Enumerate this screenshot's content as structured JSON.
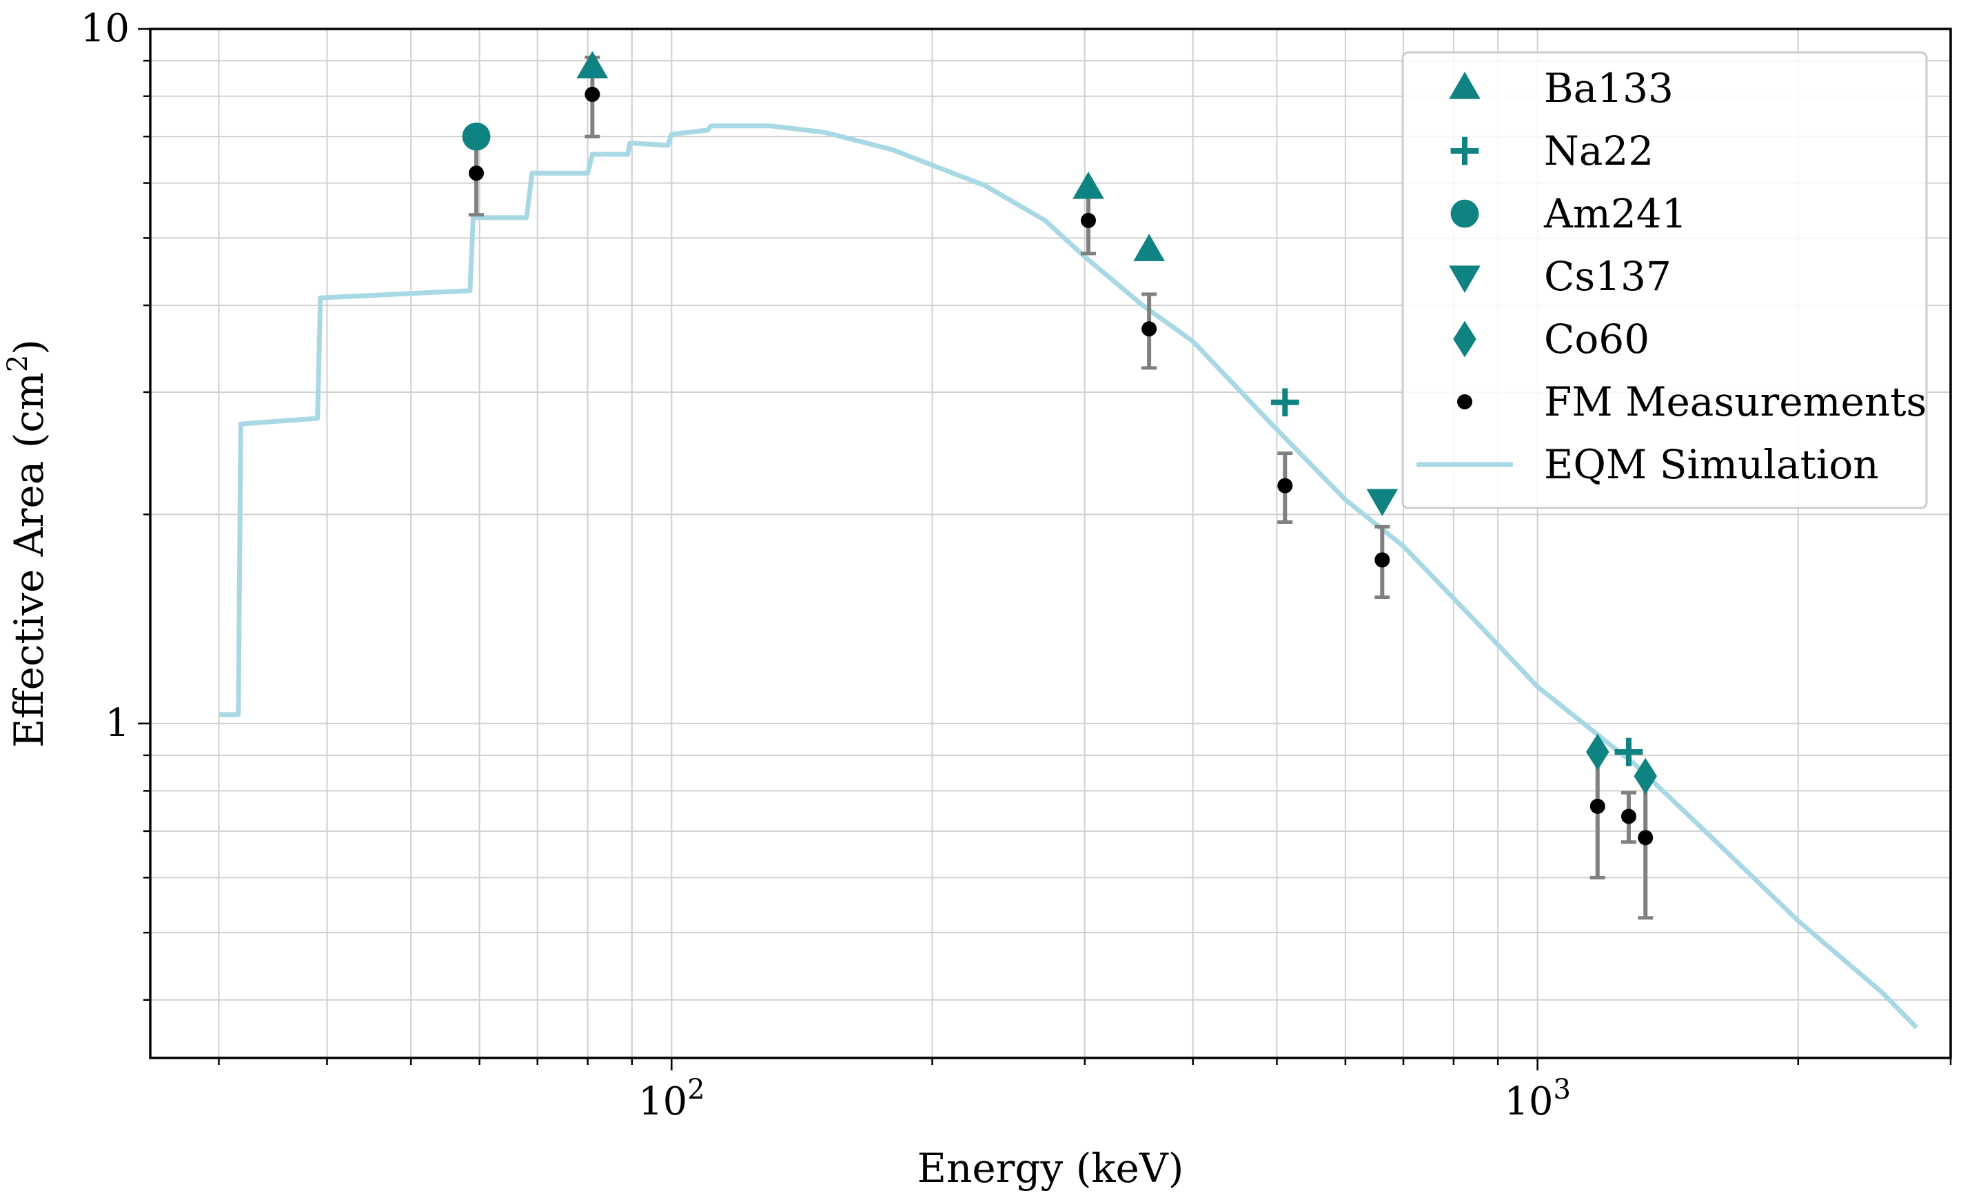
{
  "chart_data": {
    "type": "scatter",
    "title": "",
    "xlabel": "Energy (keV)",
    "ylabel_main": "Effective Area (cm",
    "ylabel_sup": "2",
    "ylabel_close": ")",
    "xscale": "log",
    "yscale": "log",
    "xlim": [
      25,
      3000
    ],
    "ylim": [
      0.33,
      10
    ],
    "grid": true,
    "legend_position": "top-right",
    "x_tick_labels": [
      {
        "value": 100,
        "base": "10",
        "exp": "2"
      },
      {
        "value": 1000,
        "base": "10",
        "exp": "3"
      }
    ],
    "y_tick_labels": [
      {
        "value": 1,
        "label": "1"
      },
      {
        "value": 10,
        "label": "10"
      }
    ],
    "colors": {
      "markers": "#0f8282",
      "measurements": "#000000",
      "errorbars": "#808080",
      "simulation": "#a8d8e4"
    },
    "series": [
      {
        "name": "Ba133",
        "marker": "triangle-up",
        "x": [
          81,
          302.9,
          356
        ],
        "y": [
          8.8,
          5.9,
          4.8
        ]
      },
      {
        "name": "Na22",
        "marker": "plus",
        "x": [
          511,
          1274.5
        ],
        "y": [
          2.9,
          0.91
        ]
      },
      {
        "name": "Am241",
        "marker": "circle",
        "x": [
          59.5
        ],
        "y": [
          7.0
        ]
      },
      {
        "name": "Cs137",
        "marker": "triangle-down",
        "x": [
          661.7
        ],
        "y": [
          2.1
        ]
      },
      {
        "name": "Co60",
        "marker": "diamond",
        "x": [
          1173.2,
          1332.5
        ],
        "y": [
          0.91,
          0.84
        ]
      },
      {
        "name": "FM Measurements",
        "marker": "dot",
        "x": [
          59.5,
          81,
          302.9,
          356,
          511,
          661.7,
          1173.2,
          1274.5,
          1332.5
        ],
        "y": [
          6.2,
          8.05,
          5.3,
          3.7,
          2.2,
          1.72,
          0.76,
          0.735,
          0.685
        ],
        "err_low": [
          0.8,
          1.05,
          0.55,
          0.45,
          0.25,
          0.2,
          0.16,
          0.06,
          0.16
        ],
        "err_high": [
          0.8,
          1.05,
          0.55,
          0.45,
          0.25,
          0.2,
          0.16,
          0.06,
          0.16
        ]
      },
      {
        "name": "EQM Simulation",
        "marker": "line",
        "x": [
          30,
          31.6,
          31.8,
          39,
          39.3,
          58.5,
          59,
          68,
          69,
          80,
          81,
          89,
          89.5,
          99,
          100,
          110,
          111,
          115,
          130,
          150,
          180,
          230,
          270,
          300,
          350,
          400,
          500,
          600,
          700,
          850,
          1000,
          1300,
          1600,
          2000,
          2500,
          2740
        ],
        "y": [
          1.03,
          1.03,
          2.7,
          2.75,
          4.1,
          4.2,
          5.35,
          5.35,
          6.2,
          6.2,
          6.6,
          6.6,
          6.85,
          6.8,
          7.05,
          7.15,
          7.25,
          7.25,
          7.25,
          7.1,
          6.7,
          5.95,
          5.3,
          4.7,
          4.0,
          3.55,
          2.65,
          2.1,
          1.8,
          1.4,
          1.13,
          0.87,
          0.68,
          0.52,
          0.41,
          0.365
        ]
      }
    ]
  }
}
